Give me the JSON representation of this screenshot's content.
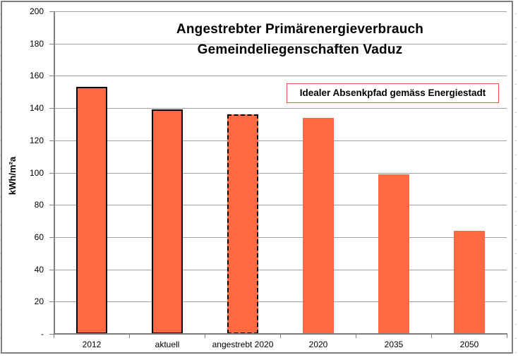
{
  "chart_data": {
    "type": "bar",
    "title_line1": "Angestrebter Primärenergieverbrauch",
    "title_line2": "Gemeindeliegenschaften Vaduz",
    "ylabel": "kWh/m²a",
    "annotation": "Idealer Absenkpfad gemäss Energiestadt",
    "categories": [
      "2012",
      "aktuell",
      "angestrebt 2020",
      "2020",
      "2035",
      "2050"
    ],
    "values": [
      153,
      139,
      136,
      134,
      99,
      64
    ],
    "bar_border_styles": [
      "solid",
      "solid",
      "dashed",
      "none",
      "none",
      "none"
    ],
    "ylim": [
      0,
      200
    ],
    "ytick_step": 20,
    "ytick_labels": [
      "200",
      "180",
      "160",
      "140",
      "120",
      "100",
      "80",
      "60",
      "40",
      "20",
      "-"
    ],
    "grid": true,
    "legend": "none",
    "colors": {
      "bar_fill": "#ff6a42",
      "bar_border": "#000000",
      "annotation_border": "#e85732",
      "gridline": "#a0a0a0",
      "axis": "#808080",
      "chart_frame_border": "#808080",
      "text": "#000000",
      "background": "#ffffff"
    }
  }
}
